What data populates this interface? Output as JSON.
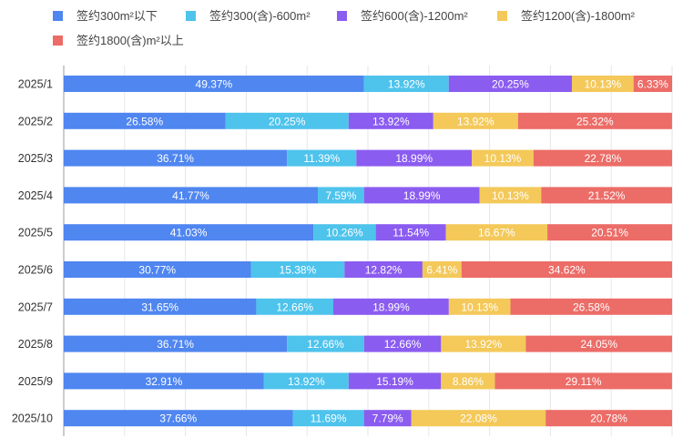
{
  "chart_data": {
    "type": "bar",
    "orientation": "horizontal",
    "stacked": true,
    "percent": true,
    "title": "",
    "xlabel": "",
    "ylabel": "",
    "xlim": [
      0,
      100
    ],
    "grid": true,
    "legend_position": "top-left",
    "categories": [
      "2025/1",
      "2025/2",
      "2025/3",
      "2025/4",
      "2025/5",
      "2025/6",
      "2025/7",
      "2025/8",
      "2025/9",
      "2025/10"
    ],
    "series": [
      {
        "name": "签约300m²以下",
        "color": "#4f86f0",
        "values": [
          49.37,
          26.58,
          36.71,
          41.77,
          41.03,
          30.77,
          31.65,
          36.71,
          32.91,
          37.66
        ],
        "labels": [
          "49.37%",
          "26.58%",
          "36.71%",
          "41.77%",
          "41.03%",
          "30.77%",
          "31.65%",
          "36.71%",
          "32.91%",
          "37.66%"
        ]
      },
      {
        "name": "签约300(含)-600m²",
        "color": "#4ec3ec",
        "values": [
          13.92,
          20.25,
          11.39,
          7.59,
          10.26,
          15.38,
          12.66,
          12.66,
          13.92,
          11.69
        ],
        "labels": [
          "13.92%",
          "20.25%",
          "11.39%",
          "7.59%",
          "10.26%",
          "15.38%",
          "12.66%",
          "12.66%",
          "13.92%",
          "11.69%"
        ]
      },
      {
        "name": "签约600(含)-1200m²",
        "color": "#8b5cf0",
        "values": [
          20.25,
          13.92,
          18.99,
          18.99,
          11.54,
          12.82,
          18.99,
          12.66,
          15.19,
          7.79
        ],
        "labels": [
          "20.25%",
          "13.92%",
          "18.99%",
          "18.99%",
          "11.54%",
          "12.82%",
          "18.99%",
          "12.66%",
          "15.19%",
          "7.79%"
        ]
      },
      {
        "name": "签约1200(含)-1800m²",
        "color": "#f4c95a",
        "values": [
          10.13,
          13.92,
          10.13,
          10.13,
          16.67,
          6.41,
          10.13,
          13.92,
          8.86,
          22.08
        ],
        "labels": [
          "10.13%",
          "13.92%",
          "10.13%",
          "10.13%",
          "16.67%",
          "6.41%",
          "10.13%",
          "13.92%",
          "8.86%",
          "22.08%"
        ]
      },
      {
        "name": "签约1800(含)m²以上",
        "color": "#ec6c67",
        "values": [
          6.33,
          25.32,
          22.78,
          21.52,
          20.51,
          34.62,
          26.58,
          24.05,
          29.11,
          20.78
        ],
        "labels": [
          "6.33%",
          "25.32%",
          "22.78%",
          "21.52%",
          "20.51%",
          "34.62%",
          "26.58%",
          "24.05%",
          "29.11%",
          "20.78%"
        ]
      }
    ]
  }
}
